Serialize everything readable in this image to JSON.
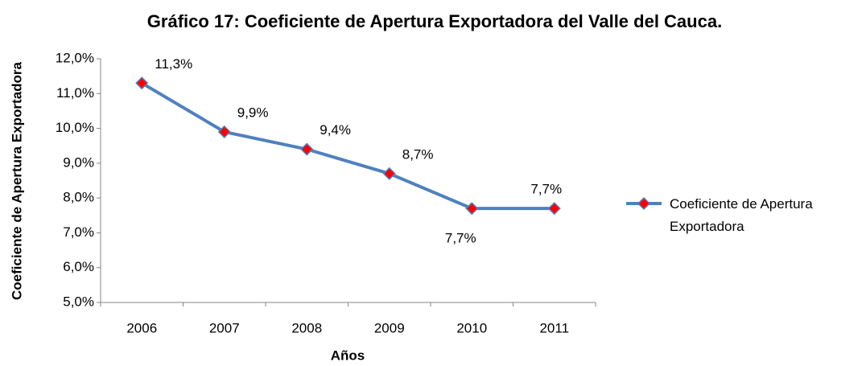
{
  "chart_data": {
    "type": "line",
    "title": "Gráfico 17: Coeficiente de Apertura Exportadora del Valle del Cauca.",
    "x_label": "Años",
    "y_label": "Coeficiente de Apertura Exportadora",
    "categories": [
      "2006",
      "2007",
      "2008",
      "2009",
      "2010",
      "2011"
    ],
    "series": [
      {
        "name": "Coeficiente de Apertura Exportadora",
        "color": "#4f81bd",
        "marker_color": "#ff0000",
        "values": [
          11.3,
          9.9,
          9.4,
          8.7,
          7.7,
          7.7
        ],
        "value_labels": [
          "11,3%",
          "9,9%",
          "9,4%",
          "8,7%",
          "7,7%",
          "7,7%"
        ]
      }
    ],
    "ylim": [
      5,
      12
    ],
    "yticks": [
      {
        "value": 5,
        "label": "5,0%"
      },
      {
        "value": 6,
        "label": "6,0%"
      },
      {
        "value": 7,
        "label": "7,0%"
      },
      {
        "value": 8,
        "label": "8,0%"
      },
      {
        "value": 9,
        "label": "9,0%"
      },
      {
        "value": 10,
        "label": "10,0%"
      },
      {
        "value": 11,
        "label": "11,0%"
      },
      {
        "value": 12,
        "label": "12,0%"
      }
    ],
    "grid": false,
    "legend": "right"
  }
}
